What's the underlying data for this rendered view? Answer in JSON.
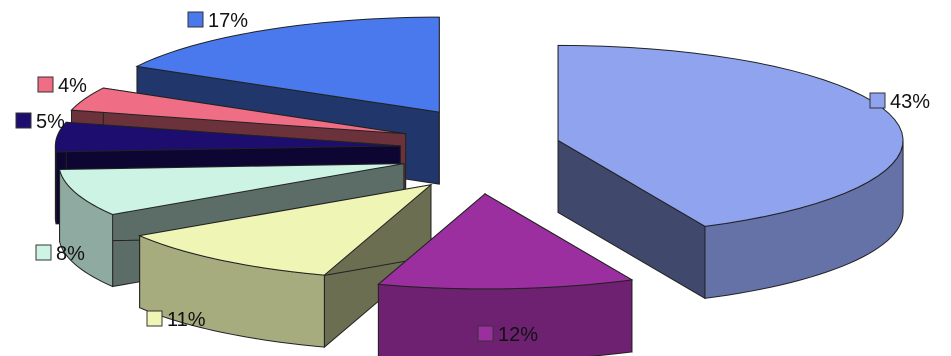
{
  "chart_data": {
    "type": "pie",
    "style": "3d-exploded",
    "slices": [
      {
        "label": "43%",
        "value": 43,
        "color": "#8fa3ef"
      },
      {
        "label": "12%",
        "value": 12,
        "color": "#9c2fa0"
      },
      {
        "label": "11%",
        "value": 11,
        "color": "#eef5b5"
      },
      {
        "label": "8%",
        "value": 8,
        "color": "#ccf3e4"
      },
      {
        "label": "5%",
        "value": 5,
        "color": "#1c0d6e"
      },
      {
        "label": "4%",
        "value": 4,
        "color": "#ef6e86"
      },
      {
        "label": "17%",
        "value": 17,
        "color": "#4a79ee"
      }
    ]
  }
}
